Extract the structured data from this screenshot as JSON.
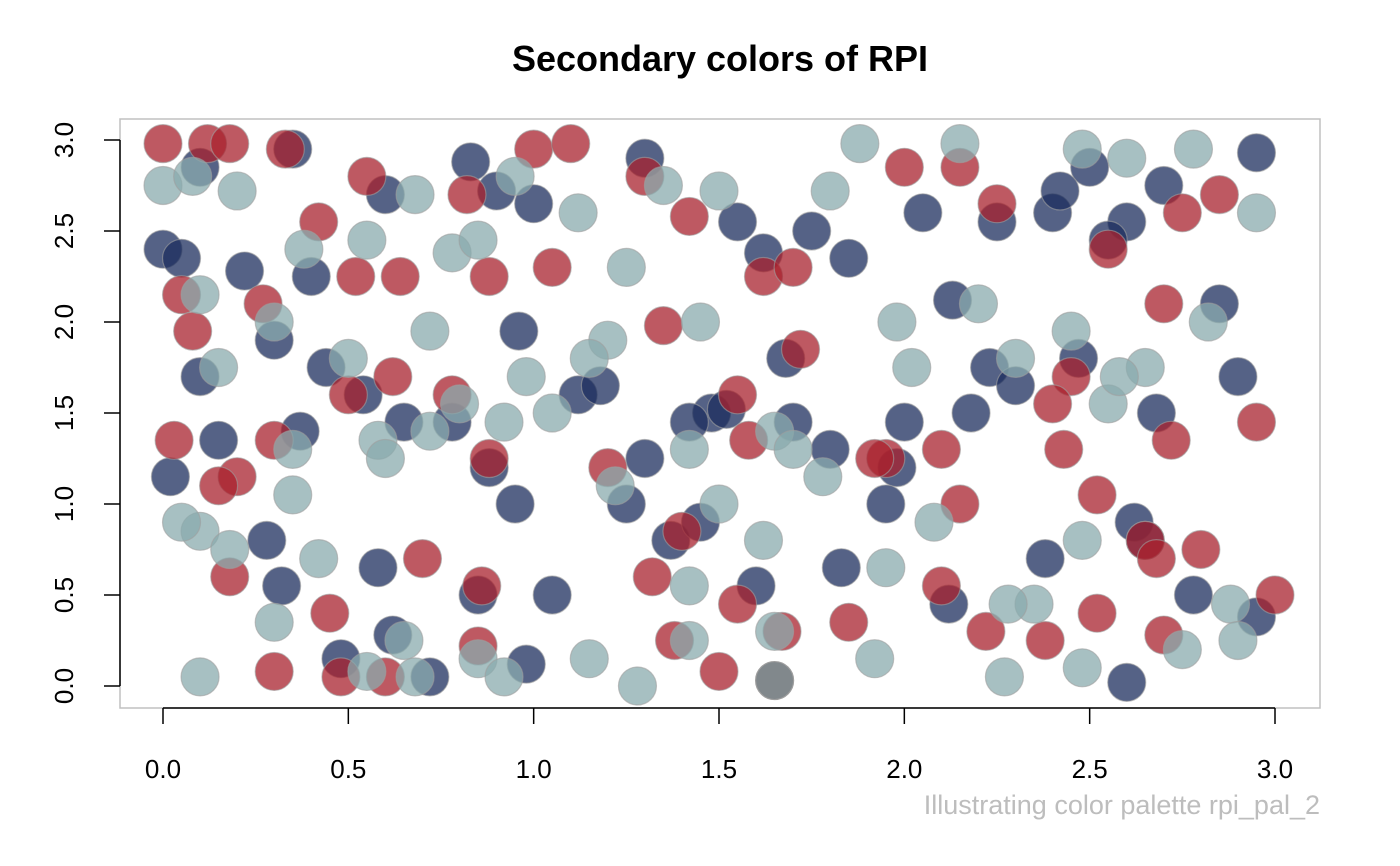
{
  "chart_data": {
    "type": "scatter",
    "title": "Secondary colors of RPI",
    "caption": "Illustrating color palette rpi_pal_2",
    "xlabel": "",
    "ylabel": "",
    "xlim": [
      0,
      3
    ],
    "ylim": [
      0,
      3
    ],
    "x_ticks": [
      "0.0",
      "0.5",
      "1.0",
      "1.5",
      "2.0",
      "2.5",
      "3.0"
    ],
    "y_ticks": [
      "0.0",
      "0.5",
      "1.0",
      "1.5",
      "2.0",
      "2.5",
      "3.0"
    ],
    "grid": false,
    "legend": "none",
    "colors": {
      "navy": "#1c2e5e",
      "red": "#a8212d",
      "sage": "#8aabae"
    },
    "series": [
      {
        "color": "#1c2e5e",
        "x": [
          0.0,
          0.1,
          0.35,
          0.6,
          0.9,
          1.0,
          1.3,
          1.55,
          1.75,
          2.05,
          2.25,
          2.5,
          2.6,
          2.7,
          2.95,
          0.05,
          0.22,
          0.4,
          0.83,
          0.96,
          1.12,
          1.48,
          1.62,
          1.85,
          2.13,
          2.4,
          2.55,
          2.85,
          0.1,
          0.3,
          0.44,
          0.65,
          0.88,
          1.18,
          1.42,
          1.68,
          1.98,
          2.23,
          2.42,
          2.68,
          2.9,
          0.02,
          0.15,
          0.37,
          0.54,
          0.78,
          0.95,
          1.3,
          1.52,
          1.8,
          2.0,
          2.18,
          2.47,
          2.62,
          2.78,
          0.28,
          0.58,
          0.85,
          1.05,
          1.37,
          1.6,
          1.83,
          2.12,
          2.38,
          2.65,
          2.95,
          0.32,
          0.48,
          0.62,
          0.72,
          0.98,
          1.25,
          1.45,
          1.7,
          1.95,
          2.3,
          2.6
        ],
        "y": [
          2.4,
          2.85,
          2.95,
          2.7,
          2.72,
          2.65,
          2.9,
          2.55,
          2.5,
          2.6,
          2.55,
          2.85,
          2.55,
          2.75,
          2.93,
          2.35,
          2.28,
          2.25,
          2.88,
          1.95,
          1.6,
          1.5,
          2.38,
          2.35,
          2.12,
          2.6,
          2.45,
          2.1,
          1.7,
          1.9,
          1.75,
          1.45,
          1.2,
          1.65,
          1.45,
          1.8,
          1.2,
          1.75,
          2.72,
          1.5,
          1.7,
          1.15,
          1.35,
          1.4,
          1.6,
          1.45,
          1.0,
          1.25,
          1.52,
          1.3,
          1.45,
          1.5,
          1.8,
          0.9,
          0.5,
          0.8,
          0.65,
          0.5,
          0.5,
          0.8,
          0.55,
          0.65,
          0.45,
          0.7,
          0.8,
          0.38,
          0.55,
          0.15,
          0.28,
          0.05,
          0.12,
          1.0,
          0.9,
          1.45,
          1.0,
          1.65,
          0.02
        ]
      },
      {
        "color": "#a8212d",
        "x": [
          0.0,
          0.12,
          0.18,
          0.33,
          0.55,
          0.82,
          1.0,
          1.1,
          1.3,
          1.42,
          1.62,
          1.7,
          2.0,
          2.15,
          2.25,
          2.55,
          2.75,
          2.85,
          0.05,
          0.27,
          0.42,
          0.52,
          0.64,
          0.88,
          1.05,
          1.35,
          1.55,
          1.72,
          2.1,
          2.45,
          2.7,
          0.08,
          0.3,
          0.5,
          0.78,
          1.2,
          1.58,
          1.95,
          2.43,
          2.72,
          2.95,
          0.03,
          0.2,
          0.62,
          0.88,
          1.4,
          1.92,
          2.15,
          2.4,
          2.65,
          2.8,
          0.15,
          0.45,
          0.7,
          0.86,
          1.32,
          1.55,
          1.85,
          2.1,
          2.52,
          2.68,
          0.18,
          0.3,
          0.48,
          0.6,
          0.85,
          1.38,
          1.5,
          1.67,
          2.22,
          2.38,
          2.52,
          2.7,
          3.0
        ],
        "y": [
          2.98,
          2.98,
          2.98,
          2.95,
          2.8,
          2.7,
          2.95,
          2.98,
          2.8,
          2.58,
          2.25,
          2.3,
          2.85,
          2.85,
          2.65,
          2.4,
          2.6,
          2.7,
          2.15,
          2.1,
          2.55,
          2.25,
          2.25,
          2.25,
          2.3,
          1.98,
          1.6,
          1.85,
          1.3,
          1.7,
          2.1,
          1.95,
          1.35,
          1.6,
          1.6,
          1.2,
          1.35,
          1.25,
          1.3,
          1.35,
          1.45,
          1.35,
          1.15,
          1.7,
          1.25,
          0.85,
          1.25,
          1.0,
          1.55,
          0.8,
          0.75,
          1.1,
          0.4,
          0.7,
          0.55,
          0.6,
          0.45,
          0.35,
          0.55,
          1.05,
          0.7,
          0.6,
          0.08,
          0.05,
          0.05,
          0.22,
          0.25,
          0.08,
          0.3,
          0.3,
          0.25,
          0.4,
          0.28,
          0.5
        ]
      },
      {
        "color": "#8aabae",
        "x": [
          0.0,
          0.08,
          0.2,
          0.38,
          0.55,
          0.68,
          0.78,
          0.95,
          1.12,
          1.25,
          1.35,
          1.5,
          1.8,
          1.88,
          2.15,
          2.48,
          2.6,
          2.78,
          2.95,
          0.1,
          0.3,
          0.5,
          0.72,
          0.85,
          1.05,
          1.2,
          1.45,
          1.65,
          1.98,
          2.2,
          2.45,
          2.65,
          0.15,
          0.35,
          0.58,
          0.72,
          0.92,
          1.15,
          1.42,
          1.7,
          2.02,
          2.3,
          2.55,
          2.82,
          0.1,
          0.35,
          0.6,
          0.8,
          0.98,
          1.22,
          1.5,
          1.78,
          2.08,
          2.35,
          2.58,
          2.88,
          0.05,
          0.18,
          0.42,
          0.65,
          0.85,
          1.15,
          1.42,
          1.62,
          1.92,
          2.28,
          2.48,
          2.75,
          0.1,
          0.3,
          0.55,
          0.68,
          0.92,
          1.28,
          1.42,
          1.65,
          1.95,
          2.27,
          2.48,
          2.9
        ],
        "y": [
          2.75,
          2.8,
          2.72,
          2.4,
          2.45,
          2.7,
          2.38,
          2.8,
          2.6,
          2.3,
          2.75,
          2.72,
          2.72,
          2.98,
          2.98,
          2.95,
          2.9,
          2.95,
          2.6,
          2.15,
          2.0,
          1.8,
          1.95,
          2.45,
          1.5,
          1.9,
          2.0,
          1.4,
          2.0,
          2.1,
          1.95,
          1.75,
          1.75,
          1.3,
          1.35,
          1.4,
          1.45,
          1.8,
          1.3,
          1.3,
          1.75,
          1.8,
          1.55,
          2.0,
          0.85,
          1.05,
          1.25,
          1.55,
          1.7,
          1.1,
          1.0,
          1.15,
          0.9,
          0.45,
          1.7,
          0.45,
          0.9,
          0.75,
          0.7,
          0.25,
          0.15,
          0.15,
          0.55,
          0.8,
          0.15,
          0.45,
          0.8,
          0.2,
          0.05,
          0.35,
          0.08,
          0.05,
          0.05,
          0.0,
          0.25,
          0.3,
          0.65,
          0.05,
          0.1,
          0.25
        ]
      }
    ],
    "highlight_point": {
      "x": 1.65,
      "y": 0.03,
      "color": "#6b7378"
    }
  }
}
